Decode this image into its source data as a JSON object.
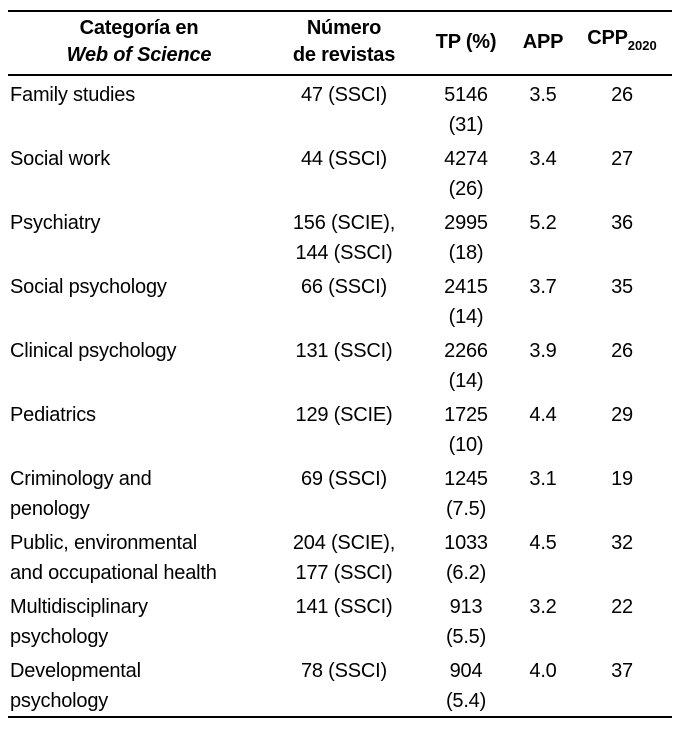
{
  "table": {
    "headers": {
      "category_line1": "Categoría en",
      "category_line2": "Web of Science",
      "journals_line1": "Número",
      "journals_line2": "de revistas",
      "tp": "TP (%)",
      "app": "APP",
      "cpp_base": "CPP",
      "cpp_sub": "2020"
    },
    "rows": [
      {
        "category": [
          "Family studies",
          ""
        ],
        "journals": [
          "47 (SSCI)",
          ""
        ],
        "tp": [
          "5146",
          "(31)"
        ],
        "app": "3.5",
        "cpp": "26"
      },
      {
        "category": [
          "Social work",
          ""
        ],
        "journals": [
          "44 (SSCI)",
          ""
        ],
        "tp": [
          "4274",
          "(26)"
        ],
        "app": "3.4",
        "cpp": "27"
      },
      {
        "category": [
          "Psychiatry",
          ""
        ],
        "journals": [
          "156 (SCIE),",
          "144 (SSCI)"
        ],
        "tp": [
          "2995",
          "(18)"
        ],
        "app": "5.2",
        "cpp": "36"
      },
      {
        "category": [
          "Social psychology",
          ""
        ],
        "journals": [
          "66 (SSCI)",
          ""
        ],
        "tp": [
          "2415",
          "(14)"
        ],
        "app": "3.7",
        "cpp": "35"
      },
      {
        "category": [
          "Clinical psychology",
          ""
        ],
        "journals": [
          "131 (SSCI)",
          ""
        ],
        "tp": [
          "2266",
          "(14)"
        ],
        "app": "3.9",
        "cpp": "26"
      },
      {
        "category": [
          "Pediatrics",
          ""
        ],
        "journals": [
          "129 (SCIE)",
          ""
        ],
        "tp": [
          "1725",
          "(10)"
        ],
        "app": "4.4",
        "cpp": "29"
      },
      {
        "category": [
          "Criminology and",
          "penology"
        ],
        "journals": [
          "69 (SSCI)",
          ""
        ],
        "tp": [
          "1245",
          "(7.5)"
        ],
        "app": "3.1",
        "cpp": "19"
      },
      {
        "category": [
          "Public, environmental",
          "and occupational health"
        ],
        "journals": [
          "204 (SCIE),",
          "177 (SSCI)"
        ],
        "tp": [
          "1033",
          "(6.2)"
        ],
        "app": "4.5",
        "cpp": "32"
      },
      {
        "category": [
          "Multidisciplinary",
          "psychology"
        ],
        "journals": [
          "141 (SSCI)",
          ""
        ],
        "tp": [
          "913",
          "(5.5)"
        ],
        "app": "3.2",
        "cpp": "22"
      },
      {
        "category": [
          "Developmental",
          "psychology"
        ],
        "journals": [
          "78 (SSCI)",
          ""
        ],
        "tp": [
          "904",
          "(5.4)"
        ],
        "app": "4.0",
        "cpp": "37"
      }
    ]
  }
}
